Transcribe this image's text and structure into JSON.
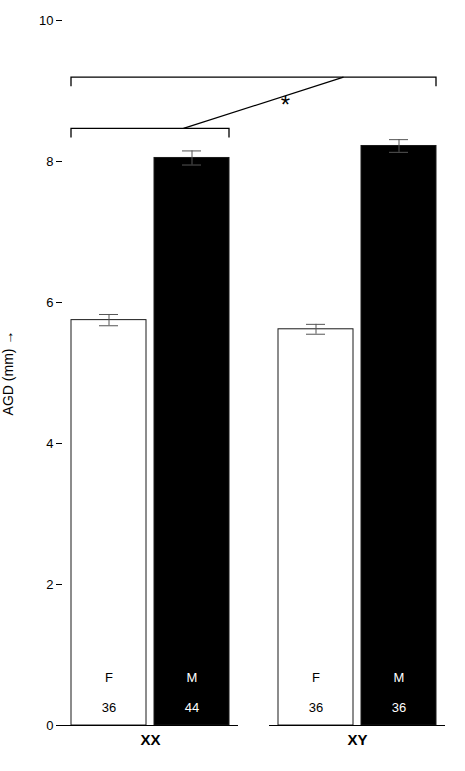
{
  "chart_data": {
    "type": "bar",
    "categories": [
      "XX",
      "XY"
    ],
    "series": [
      {
        "name": "F",
        "color": "#ffffff",
        "values": [
          5.75,
          5.62
        ],
        "errors": [
          0.08,
          0.07
        ],
        "n": [
          36,
          36
        ]
      },
      {
        "name": "M",
        "color": "#000000",
        "values": [
          8.05,
          8.22
        ],
        "errors": [
          0.1,
          0.09
        ],
        "n": [
          44,
          36
        ]
      }
    ],
    "ylabel": "AGD (mm)",
    "ylim": [
      0,
      10
    ],
    "yticks": [
      0,
      2,
      4,
      6,
      8,
      10
    ],
    "grid": false,
    "annotations": [
      {
        "text": "*"
      }
    ]
  }
}
